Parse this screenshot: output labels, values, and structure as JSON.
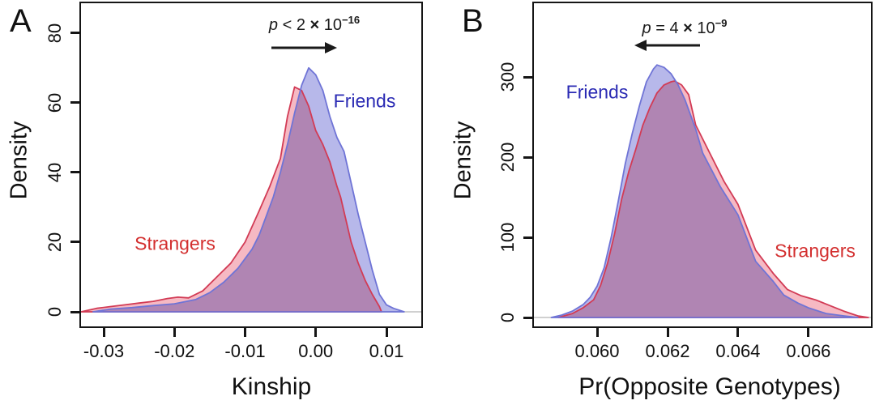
{
  "figure": {
    "background": "#ffffff",
    "panels": [
      {
        "panel_label": "A",
        "ylabel": "Density",
        "xlabel": "Kinship",
        "annotation": {
          "p_symbol": "p",
          "expression_left": " < 2 ",
          "times": "×",
          "base": " 10",
          "exponent": "−16",
          "arrow_direction": "right"
        },
        "series_labels": {
          "friends": "Friends",
          "strangers": "Strangers"
        }
      },
      {
        "panel_label": "B",
        "ylabel": "Density",
        "xlabel": "Pr(Opposite Genotypes)",
        "annotation": {
          "p_symbol": "p",
          "expression_left": " = 4 ",
          "times": "×",
          "base": " 10",
          "exponent": "−9",
          "arrow_direction": "left"
        },
        "series_labels": {
          "friends": "Friends",
          "strangers": "Strangers"
        }
      }
    ],
    "colors": {
      "strangers_fill": "#f6b9c3",
      "strangers_line": "#d23b55",
      "strangers_text": "#d32f2f",
      "friends_fill": "#b7b8ea",
      "friends_line": "#6f74d6",
      "friends_text": "#2b2bb4",
      "axis": "#151515",
      "baseline": "#c0c0c0",
      "annotation_text": "#1a1a1a"
    }
  },
  "chart_data": [
    {
      "type": "area",
      "title": "",
      "xlabel": "Kinship",
      "ylabel": "Density",
      "xlim": [
        -0.03344,
        0.01516
      ],
      "ylim": [
        0,
        89
      ],
      "x_ticks": [
        -0.03,
        -0.02,
        -0.01,
        0.0,
        0.01
      ],
      "x_tick_labels": [
        "-0.03",
        "-0.02",
        "-0.01",
        "0.00",
        "0.01"
      ],
      "y_ticks": [
        0,
        20,
        40,
        60,
        80
      ],
      "y_tick_labels": [
        "0",
        "20",
        "40",
        "60",
        "80"
      ],
      "grid": false,
      "legend_position": "none",
      "annotation": "p < 2 × 10^−16",
      "annotation_arrow": "right",
      "series": [
        {
          "name": "Strangers",
          "line_color": "#d23b55",
          "fill_color": "#f6b9c3",
          "x": [
            -0.0332,
            -0.031,
            -0.029,
            -0.027,
            -0.025,
            -0.023,
            -0.021,
            -0.0195,
            -0.018,
            -0.016,
            -0.014,
            -0.012,
            -0.01,
            -0.008,
            -0.0065,
            -0.005,
            -0.004,
            -0.003,
            -0.002,
            -0.001,
            0.0,
            0.001,
            0.002,
            0.003,
            0.0035,
            0.005,
            0.006,
            0.007,
            0.008,
            0.009,
            0.0093
          ],
          "y": [
            0,
            1,
            1.5,
            2,
            2.5,
            3,
            3.8,
            4.2,
            4.0,
            6,
            10,
            14,
            20,
            29,
            36,
            44,
            56,
            64.5,
            63.5,
            59,
            52,
            48,
            43,
            36,
            33,
            20,
            14,
            9,
            5,
            1.5,
            0
          ]
        },
        {
          "name": "Friends",
          "line_color": "#6f74d6",
          "fill_color": "#b7b8ea",
          "x": [
            -0.0315,
            -0.029,
            -0.026,
            -0.023,
            -0.02,
            -0.017,
            -0.015,
            -0.013,
            -0.011,
            -0.009,
            -0.008,
            -0.007,
            -0.006,
            -0.005,
            -0.004,
            -0.003,
            -0.002,
            -0.001,
            0.0,
            0.001,
            0.002,
            0.003,
            0.004,
            0.005,
            0.006,
            0.007,
            0.008,
            0.009,
            0.01,
            0.011,
            0.0125
          ],
          "y": [
            0,
            0.8,
            1.2,
            1.8,
            2.3,
            3.5,
            5.5,
            8.5,
            12.5,
            18,
            22,
            27.5,
            33,
            40,
            48,
            57,
            65,
            70,
            68,
            63.5,
            56,
            50,
            46,
            37,
            28,
            20,
            12,
            5,
            2,
            1,
            0
          ]
        }
      ]
    },
    {
      "type": "area",
      "title": "",
      "xlabel": "Pr(Opposite Genotypes)",
      "ylabel": "Density",
      "xlim": [
        0.05816,
        0.06782
      ],
      "ylim": [
        0,
        394
      ],
      "x_ticks": [
        0.06,
        0.062,
        0.064,
        0.066
      ],
      "x_tick_labels": [
        "0.060",
        "0.062",
        "0.064",
        "0.066"
      ],
      "y_ticks": [
        0,
        100,
        200,
        300
      ],
      "y_tick_labels": [
        "0",
        "100",
        "200",
        "300"
      ],
      "grid": false,
      "legend_position": "none",
      "annotation": "p = 4 × 10^−9",
      "annotation_arrow": "left",
      "series": [
        {
          "name": "Strangers",
          "line_color": "#d23b55",
          "fill_color": "#f6b9c3",
          "x": [
            0.0589,
            0.0593,
            0.0596,
            0.0599,
            0.0601,
            0.0603,
            0.0605,
            0.0607,
            0.0609,
            0.0611,
            0.0613,
            0.0615,
            0.0617,
            0.0619,
            0.0621,
            0.0622,
            0.0624,
            0.0626,
            0.0628,
            0.0632,
            0.0636,
            0.064,
            0.0645,
            0.065,
            0.0654,
            0.0658,
            0.0662,
            0.0666,
            0.067,
            0.0674,
            0.0677
          ],
          "y": [
            0,
            5,
            12,
            22,
            40,
            68,
            105,
            148,
            182,
            210,
            240,
            262,
            280,
            290,
            294,
            295,
            290,
            278,
            240,
            205,
            170,
            141,
            84,
            55,
            35,
            27,
            22,
            15,
            8,
            2,
            0
          ]
        },
        {
          "name": "Friends",
          "line_color": "#6f74d6",
          "fill_color": "#b7b8ea",
          "x": [
            0.0587,
            0.059,
            0.0593,
            0.0596,
            0.0598,
            0.06,
            0.0602,
            0.0604,
            0.0606,
            0.0608,
            0.061,
            0.0612,
            0.0614,
            0.0616,
            0.0617,
            0.0619,
            0.0621,
            0.0623,
            0.0625,
            0.0628,
            0.063,
            0.0635,
            0.064,
            0.0645,
            0.065,
            0.0653,
            0.0657,
            0.066,
            0.0665,
            0.067,
            0.0674
          ],
          "y": [
            0,
            3,
            8,
            16,
            25,
            39,
            62,
            100,
            145,
            192,
            230,
            264,
            294,
            310,
            315,
            312,
            304,
            290,
            271,
            235,
            205,
            163,
            128,
            70,
            45,
            28,
            18,
            12,
            5,
            2,
            0
          ]
        }
      ]
    }
  ]
}
